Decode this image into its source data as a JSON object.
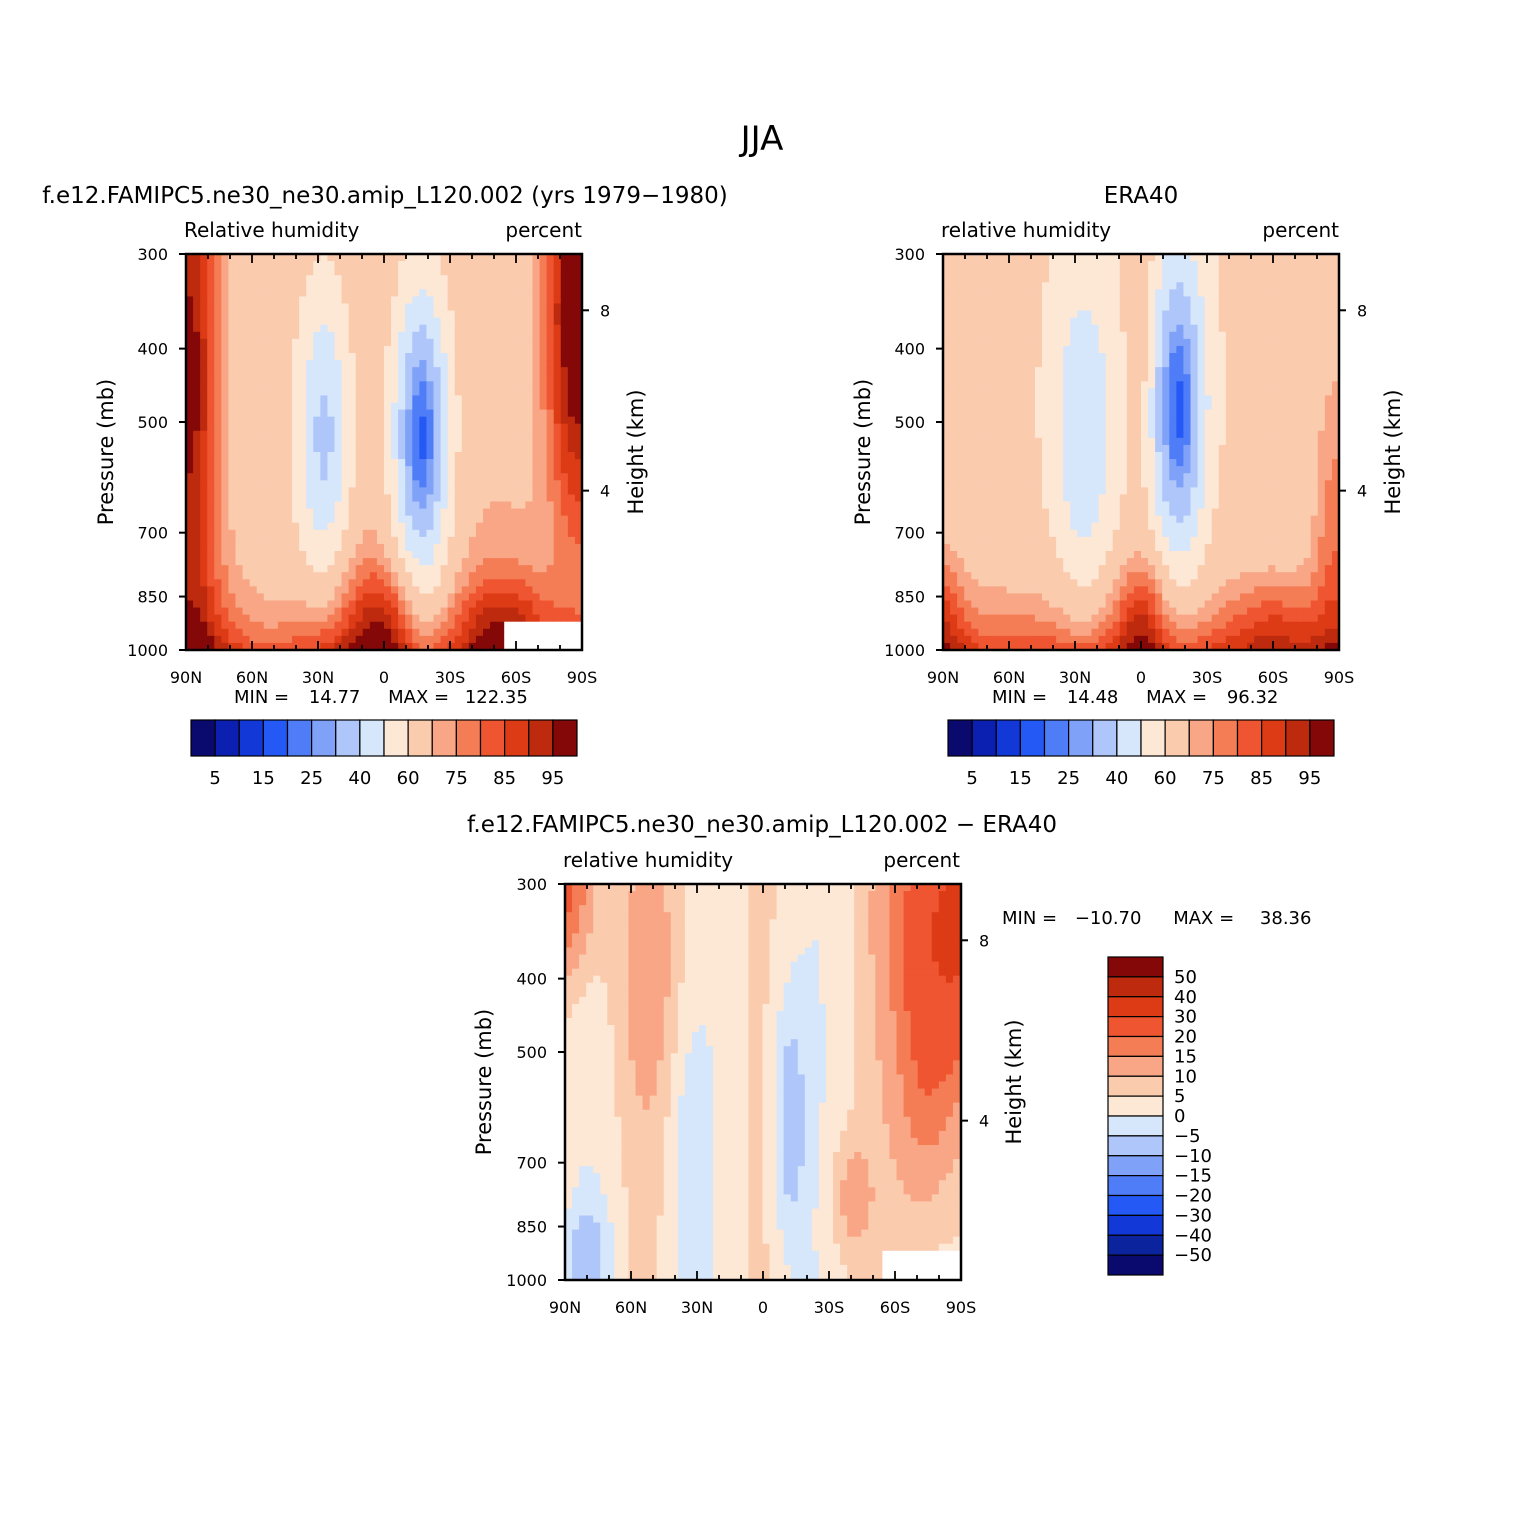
{
  "page": {
    "title": "JJA"
  },
  "colors": {
    "abs_palette": [
      "#0a0a6e",
      "#0b1fb0",
      "#1238d8",
      "#2459f5",
      "#4f7df7",
      "#7fa2f8",
      "#aec6fa",
      "#d6e6fb",
      "#fde8d6",
      "#fbcbae",
      "#f8a685",
      "#f57d56",
      "#ee5530",
      "#dd3a16",
      "#bd2a0e",
      "#850808"
    ],
    "diff_palette": [
      "#0a0a6e",
      "#0c239e",
      "#1238d8",
      "#2459f5",
      "#4f7df7",
      "#7fa2f8",
      "#aec6fa",
      "#d6e6fb",
      "#fde8d6",
      "#fbcbae",
      "#f8a685",
      "#f57d56",
      "#ee5530",
      "#dd3a16",
      "#bd2a0e",
      "#850808"
    ]
  },
  "chart_data": [
    {
      "type": "contour",
      "panel_title": "f.e12.FAMIPC5.ne30_ne30.amip_L120.002 (yrs 1979−1980)",
      "left_string": "Relative humidity",
      "right_string": "percent",
      "ylabel": "Pressure (mb)",
      "ylabel_right": "Height (km)",
      "y_ticks": [
        "300",
        "400",
        "500",
        "700",
        "850",
        "1000"
      ],
      "y_tick_values": [
        300,
        400,
        500,
        600,
        700,
        850,
        1000
      ],
      "y_right_ticks": [
        "8",
        "4"
      ],
      "x_ticks": [
        "90N",
        "60N",
        "30N",
        "0",
        "30S",
        "60S",
        "90S"
      ],
      "x_range_lat": [
        90,
        -90
      ],
      "ylim_mb": [
        300,
        1000
      ],
      "stats": {
        "min_label": "MIN =",
        "min": "14.77",
        "max_label": "MAX =",
        "max": "122.35"
      },
      "colorbar": {
        "orientation": "horizontal",
        "labels": [
          "5",
          "15",
          "25",
          "40",
          "60",
          "75",
          "85",
          "95"
        ],
        "levels": [
          5,
          10,
          15,
          20,
          25,
          30,
          40,
          50,
          60,
          70,
          75,
          80,
          85,
          90,
          95
        ]
      },
      "missing_region": {
        "lat": [
          -55,
          -90
        ],
        "p_mb": [
          920,
          1000
        ]
      },
      "features": {
        "tropics_dry_min_pct": 20,
        "nh_subtropics_dry_min_pct": 45,
        "polar_south_max_pct": 100,
        "boundary_layer_pct": 85
      }
    },
    {
      "type": "contour",
      "panel_title": "ERA40",
      "left_string": "relative humidity",
      "right_string": "percent",
      "ylabel": "Pressure (mb)",
      "ylabel_right": "Height (km)",
      "y_ticks": [
        "300",
        "400",
        "500",
        "700",
        "850",
        "1000"
      ],
      "y_right_ticks": [
        "8",
        "4"
      ],
      "x_ticks": [
        "90N",
        "60N",
        "30N",
        "0",
        "30S",
        "60S",
        "90S"
      ],
      "x_range_lat": [
        90,
        -90
      ],
      "ylim_mb": [
        300,
        1000
      ],
      "stats": {
        "min_label": "MIN =",
        "min": "14.48",
        "max_label": "MAX =",
        "max": "96.32"
      },
      "colorbar": {
        "orientation": "horizontal",
        "labels": [
          "5",
          "15",
          "25",
          "40",
          "60",
          "75",
          "85",
          "95"
        ],
        "levels": [
          5,
          10,
          15,
          20,
          25,
          30,
          40,
          50,
          60,
          70,
          75,
          80,
          85,
          90,
          95
        ]
      },
      "features": {
        "tropics_dry_min_pct": 20,
        "nh_subtropics_dry_min_pct": 45,
        "polar_south_max_pct": 80,
        "boundary_layer_pct": 85
      }
    },
    {
      "type": "contour",
      "panel_title": "f.e12.FAMIPC5.ne30_ne30.amip_L120.002 − ERA40",
      "left_string": "relative humidity",
      "right_string": "percent",
      "ylabel": "Pressure (mb)",
      "ylabel_right": "Height (km)",
      "y_ticks": [
        "300",
        "400",
        "500",
        "700",
        "850",
        "1000"
      ],
      "y_right_ticks": [
        "8",
        "4"
      ],
      "x_ticks": [
        "90N",
        "60N",
        "30N",
        "0",
        "30S",
        "60S",
        "90S"
      ],
      "x_range_lat": [
        90,
        -90
      ],
      "ylim_mb": [
        300,
        1000
      ],
      "stats": {
        "min_label": "MIN =",
        "min": "−10.70",
        "max_label": "MAX =",
        "max": "38.36"
      },
      "colorbar": {
        "orientation": "vertical",
        "labels": [
          "50",
          "40",
          "30",
          "20",
          "15",
          "10",
          "5",
          "0",
          "−5",
          "−10",
          "−15",
          "−20",
          "−30",
          "−40",
          "−50"
        ],
        "levels": [
          -50,
          -40,
          -30,
          -20,
          -15,
          -10,
          -5,
          0,
          5,
          10,
          15,
          20,
          30,
          40,
          50
        ]
      },
      "missing_region": {
        "lat": [
          -55,
          -90
        ],
        "p_mb": [
          920,
          1000
        ]
      },
      "features": {
        "tropics_min_pct": -10,
        "south_polar_upper_max_pct": 35,
        "north_polar_upper_max_pct": 20
      }
    }
  ]
}
